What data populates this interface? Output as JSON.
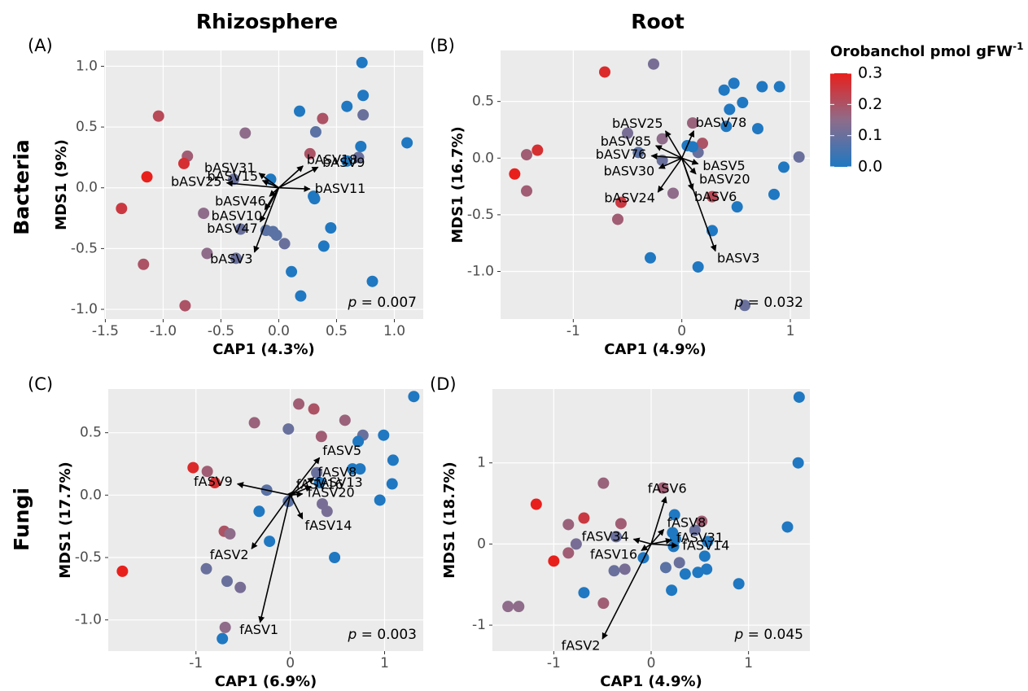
{
  "figure": {
    "column_titles": [
      "Rhizosphere",
      "Root"
    ],
    "row_titles": [
      "Bacteria",
      "Fungi"
    ],
    "colorbar": {
      "title": "Orobanchol pmol gFW",
      "title_superscript": "-1",
      "limits": [
        0,
        0.3
      ],
      "colors": [
        "#1f78c1",
        "#8e6c8a",
        "#e8201c"
      ],
      "ticks": [
        {
          "value": 0,
          "label": "0.0"
        },
        0.1,
        0.2,
        0.3
      ]
    }
  },
  "chart_data": [
    {
      "type": "scatter",
      "panel_label": "(A)",
      "xlabel": "CAP1 (4.3%)",
      "ylabel": "MDS1 (9%)",
      "p_symbol": "p",
      "p_text": " = 0.007",
      "xlim": [
        -1.51,
        1.25
      ],
      "ylim": [
        -1.08,
        1.13
      ],
      "xticks": [
        -1.5,
        {
          "value": -1,
          "label": "-1.0"
        },
        -0.5,
        {
          "value": 0,
          "label": "0.0"
        },
        0.5,
        {
          "value": 1,
          "label": "1.0"
        }
      ],
      "yticks": [
        {
          "value": -1,
          "label": "-1.0"
        },
        -0.5,
        {
          "value": 0,
          "label": "0.0"
        },
        0.5,
        {
          "value": 1,
          "label": "1.0"
        }
      ],
      "points": {
        "x": [
          0.72,
          0.73,
          -1.04,
          0.59,
          0.73,
          0.18,
          0.38,
          -0.29,
          0.32,
          1.11,
          0.71,
          -0.79,
          -0.82,
          0.27,
          0.59,
          0.69,
          -1.14,
          -0.07,
          -0.39,
          0.3,
          0.31,
          -1.36,
          -0.65,
          0.45,
          -0.33,
          -0.11,
          -0.05,
          -0.02,
          0.05,
          0.39,
          -0.62,
          -0.37,
          -1.17,
          0.11,
          0.81,
          0.19,
          -0.81
        ],
        "y": [
          1.03,
          0.76,
          0.59,
          0.67,
          0.6,
          0.63,
          0.57,
          0.45,
          0.46,
          0.37,
          0.34,
          0.26,
          0.2,
          0.28,
          0.22,
          0.25,
          0.09,
          0.07,
          0.07,
          -0.07,
          -0.09,
          -0.17,
          -0.21,
          -0.33,
          -0.34,
          -0.35,
          -0.36,
          -0.39,
          -0.46,
          -0.48,
          -0.54,
          -0.58,
          -0.63,
          -0.69,
          -0.77,
          -0.89,
          -0.97
        ],
        "orobanchol": [
          0,
          0,
          0.22,
          0,
          0.1,
          0,
          0.2,
          0.15,
          0.08,
          0,
          0,
          0.18,
          0.27,
          0.2,
          0,
          0.1,
          0.3,
          0,
          0.1,
          0,
          0,
          0.25,
          0.15,
          0,
          0.1,
          0.08,
          0.08,
          0.08,
          0.1,
          0,
          0.15,
          0.1,
          0.2,
          0,
          0,
          0,
          0.2
        ]
      },
      "arrows": [
        {
          "label": "bASV31",
          "x": -0.17,
          "y": 0.12
        },
        {
          "label": "bASV18",
          "x": 0.21,
          "y": 0.18
        },
        {
          "label": "bASV9",
          "x": 0.34,
          "y": 0.17
        },
        {
          "label": "bASV15",
          "x": -0.14,
          "y": 0.06
        },
        {
          "label": "bASV25",
          "x": -0.45,
          "y": 0.04
        },
        {
          "label": "bASV11",
          "x": 0.27,
          "y": -0.01
        },
        {
          "label": "bASV46",
          "x": -0.08,
          "y": -0.07
        },
        {
          "label": "bASV10",
          "x": -0.12,
          "y": -0.18
        },
        {
          "label": "bASV47",
          "x": -0.16,
          "y": -0.28
        },
        {
          "label": "bASV3",
          "x": -0.21,
          "y": -0.53
        }
      ]
    },
    {
      "type": "scatter",
      "panel_label": "(B)",
      "xlabel": "CAP1 (4.9%)",
      "ylabel": "MDS1 (16.7%)",
      "p_symbol": "p",
      "p_text": " = 0.032",
      "xlim": [
        -1.67,
        1.18
      ],
      "ylim": [
        -1.42,
        0.95
      ],
      "xticks": [
        -1,
        0,
        1
      ],
      "yticks": [
        {
          "value": -1,
          "label": "-1.0"
        },
        -0.5,
        {
          "value": 0,
          "label": "0.0"
        },
        0.5
      ],
      "points": {
        "x": [
          -0.26,
          -0.71,
          0.39,
          0.48,
          0.74,
          0.9,
          0.56,
          0.44,
          0.41,
          0.7,
          0.1,
          -0.5,
          -0.18,
          0.19,
          0.05,
          0.15,
          0.1,
          -1.33,
          -1.43,
          -0.4,
          -0.18,
          1.08,
          0.94,
          -1.54,
          -1.43,
          -0.08,
          0.28,
          -0.56,
          0.85,
          0.51,
          -0.59,
          0.28,
          -0.29,
          0.15,
          0.58
        ],
        "y": [
          0.83,
          0.76,
          0.6,
          0.66,
          0.63,
          0.63,
          0.49,
          0.43,
          0.28,
          0.26,
          0.31,
          0.22,
          0.17,
          0.13,
          0.11,
          0.05,
          0.1,
          0.07,
          0.03,
          0.05,
          -0.02,
          0.01,
          -0.08,
          -0.14,
          -0.29,
          -0.31,
          -0.34,
          -0.39,
          -0.32,
          -0.43,
          -0.54,
          -0.64,
          -0.88,
          -0.96,
          -1.3
        ],
        "orobanchol": [
          0.12,
          0.28,
          0,
          0,
          0,
          0,
          0,
          0,
          0,
          0,
          0.17,
          0.12,
          0.15,
          0.2,
          0,
          0.1,
          0,
          0.27,
          0.18,
          0.08,
          0.1,
          0.1,
          0,
          0.3,
          0.18,
          0.15,
          0.22,
          0.25,
          0,
          0,
          0.18,
          0,
          0,
          0,
          0.1
        ]
      },
      "arrows": [
        {
          "label": "bASV25",
          "x": -0.15,
          "y": 0.24
        },
        {
          "label": "bASV78",
          "x": 0.11,
          "y": 0.24
        },
        {
          "label": "bASV85",
          "x": -0.24,
          "y": 0.11
        },
        {
          "label": "bASV76",
          "x": -0.28,
          "y": 0.02
        },
        {
          "label": "bASV30",
          "x": -0.21,
          "y": -0.09
        },
        {
          "label": "bASV5",
          "x": 0.15,
          "y": -0.05
        },
        {
          "label": "bASV20",
          "x": 0.13,
          "y": -0.14
        },
        {
          "label": "bASV6",
          "x": 0.1,
          "y": -0.28
        },
        {
          "label": "bASV24",
          "x": -0.22,
          "y": -0.3
        },
        {
          "label": "bASV3",
          "x": 0.31,
          "y": -0.82
        }
      ]
    },
    {
      "type": "scatter",
      "panel_label": "(C)",
      "xlabel": "CAP1 (6.9%)",
      "ylabel": "MDS1 (17.7%)",
      "p_symbol": "p",
      "p_text": " = 0.003",
      "xlim": [
        -1.93,
        1.41
      ],
      "ylim": [
        -1.25,
        0.85
      ],
      "xticks": [
        -1,
        0,
        1
      ],
      "yticks": [
        {
          "value": -1,
          "label": "-1.0"
        },
        -0.5,
        {
          "value": 0,
          "label": "0.0"
        },
        0.5
      ],
      "points": {
        "x": [
          1.31,
          0.09,
          0.25,
          -0.38,
          0.58,
          -0.02,
          0.33,
          0.77,
          0.99,
          0.72,
          1.09,
          -1.03,
          -0.88,
          0.66,
          0.74,
          0.28,
          -0.8,
          0.31,
          1.08,
          -0.25,
          -0.02,
          0.34,
          0.39,
          -0.33,
          0.95,
          -0.7,
          -0.64,
          -0.22,
          0.47,
          -0.89,
          -0.67,
          -0.53,
          -1.78,
          -0.69,
          -0.72
        ],
        "y": [
          0.79,
          0.73,
          0.69,
          0.58,
          0.6,
          0.53,
          0.47,
          0.48,
          0.48,
          0.43,
          0.28,
          0.22,
          0.19,
          0.21,
          0.21,
          0.18,
          0.1,
          0.1,
          0.09,
          0.04,
          -0.05,
          -0.07,
          -0.13,
          -0.13,
          -0.04,
          -0.29,
          -0.31,
          -0.37,
          -0.5,
          -0.59,
          -0.69,
          -0.74,
          -0.61,
          -1.06,
          -1.15
        ],
        "orobanchol": [
          0,
          0.18,
          0.2,
          0.17,
          0.17,
          0.1,
          0.18,
          0.1,
          0,
          0,
          0,
          0.28,
          0.18,
          0,
          0,
          0.1,
          0.27,
          0,
          0,
          0.08,
          0.08,
          0.12,
          0.12,
          0,
          0,
          0.2,
          0.15,
          0,
          0,
          0.1,
          0.1,
          0.12,
          0.3,
          0.15,
          0
        ]
      },
      "arrows": [
        {
          "label": "fASV5",
          "x": 0.31,
          "y": 0.3
        },
        {
          "label": "fASV8",
          "x": 0.25,
          "y": 0.14
        },
        {
          "label": "fASV16",
          "x": 0.03,
          "y": 0.03
        },
        {
          "label": "fASV9",
          "x": -0.56,
          "y": 0.09
        },
        {
          "label": "fASV13",
          "x": 0.22,
          "y": 0.07
        },
        {
          "label": "fASV20",
          "x": 0.13,
          "y": 0.01
        },
        {
          "label": "fASV14",
          "x": 0.13,
          "y": -0.19
        },
        {
          "label": "fASV2",
          "x": -0.41,
          "y": -0.43
        },
        {
          "label": "fASV1",
          "x": -0.32,
          "y": -1.02
        }
      ]
    },
    {
      "type": "scatter",
      "panel_label": "(D)",
      "xlabel": "CAP1 (4.9%)",
      "ylabel": "MDS1 (18.7%)",
      "p_symbol": "p",
      "p_text": " = 0.045",
      "xlim": [
        -1.63,
        1.63
      ],
      "ylim": [
        -1.32,
        1.91
      ],
      "xticks": [
        -1,
        0,
        1
      ],
      "yticks": [
        -1,
        0,
        1
      ],
      "points": {
        "x": [
          1.52,
          1.51,
          -0.49,
          0.12,
          -1.18,
          1.4,
          0.24,
          -0.69,
          -0.31,
          0.52,
          -0.85,
          0.45,
          0.22,
          -0.36,
          0.25,
          0.58,
          -0.77,
          0.23,
          -0.85,
          0.55,
          -1.0,
          -0.08,
          0.29,
          0.15,
          -0.27,
          -0.38,
          0.57,
          0.35,
          0.48,
          0.9,
          -0.69,
          0.21,
          -0.49,
          -1.47,
          -1.36
        ],
        "y": [
          1.81,
          1.0,
          0.75,
          0.69,
          0.49,
          0.21,
          0.36,
          0.32,
          0.25,
          0.28,
          0.24,
          0.17,
          0.14,
          0.09,
          0.06,
          0.03,
          0.0,
          -0.03,
          -0.11,
          -0.15,
          -0.21,
          -0.17,
          -0.23,
          -0.29,
          -0.31,
          -0.33,
          -0.31,
          -0.37,
          -0.35,
          -0.49,
          -0.6,
          -0.57,
          -0.73,
          -0.77,
          -0.77
        ],
        "orobanchol": [
          0,
          0,
          0.17,
          0.18,
          0.3,
          0,
          0,
          0.25,
          0.18,
          0.18,
          0.17,
          0.1,
          0,
          0.1,
          0,
          0,
          0.12,
          0,
          0.18,
          0,
          0.3,
          0,
          0.1,
          0.08,
          0.12,
          0.1,
          0,
          0,
          0,
          0,
          0,
          0,
          0.18,
          0.15,
          0.15
        ]
      },
      "arrows": [
        {
          "label": "fASV6",
          "x": 0.15,
          "y": 0.58
        },
        {
          "label": "fASV8",
          "x": 0.13,
          "y": 0.18
        },
        {
          "label": "fASV31",
          "x": 0.21,
          "y": 0.05
        },
        {
          "label": "fASV14",
          "x": 0.27,
          "y": -0.02
        },
        {
          "label": "fASV34",
          "x": -0.18,
          "y": 0.06
        },
        {
          "label": "fASV16",
          "x": -0.1,
          "y": -0.08
        },
        {
          "label": "fASV2",
          "x": -0.5,
          "y": -1.17
        }
      ]
    }
  ]
}
